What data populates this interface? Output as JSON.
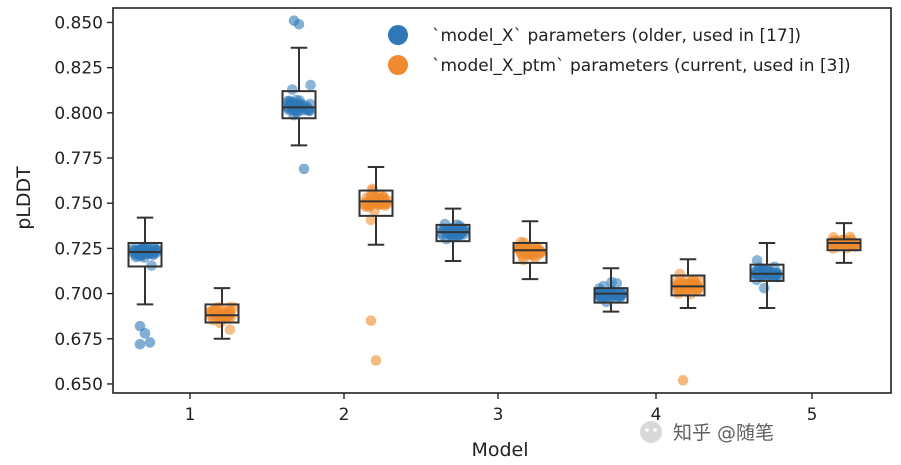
{
  "chart_data": {
    "type": "box_strip",
    "title": "",
    "xlabel": "Model",
    "ylabel": "pLDDT",
    "categories": [
      "1",
      "2",
      "3",
      "4",
      "5"
    ],
    "ylim": [
      0.645,
      0.858
    ],
    "yticks": [
      0.65,
      0.675,
      0.7,
      0.725,
      0.75,
      0.775,
      0.8,
      0.825,
      0.85
    ],
    "ytick_labels": [
      "0.650",
      "0.675",
      "0.700",
      "0.725",
      "0.750",
      "0.775",
      "0.800",
      "0.825",
      "0.850"
    ],
    "legend_position": "top-right",
    "series": [
      {
        "name": "`model_X` parameters (older, used in [17])",
        "color": "#2e78b8",
        "boxes": [
          {
            "min": 0.694,
            "q1": 0.715,
            "median": 0.723,
            "q3": 0.728,
            "max": 0.742
          },
          {
            "min": 0.782,
            "q1": 0.797,
            "median": 0.803,
            "q3": 0.812,
            "max": 0.836
          },
          {
            "min": 0.718,
            "q1": 0.729,
            "median": 0.734,
            "q3": 0.738,
            "max": 0.747
          },
          {
            "min": 0.69,
            "q1": 0.695,
            "median": 0.7,
            "q3": 0.703,
            "max": 0.714
          },
          {
            "min": 0.692,
            "q1": 0.707,
            "median": 0.711,
            "q3": 0.716,
            "max": 0.728
          }
        ],
        "outliers": [
          {
            "category": "1",
            "values": [
              0.682,
              0.678,
              0.673,
              0.672
            ]
          },
          {
            "category": "2",
            "values": [
              0.851,
              0.849,
              0.769
            ]
          }
        ]
      },
      {
        "name": "`model_X_ptm` parameters (current, used in [3])",
        "color": "#ef8a2e",
        "boxes": [
          {
            "min": 0.675,
            "q1": 0.684,
            "median": 0.688,
            "q3": 0.694,
            "max": 0.703
          },
          {
            "min": 0.727,
            "q1": 0.743,
            "median": 0.751,
            "q3": 0.757,
            "max": 0.77
          },
          {
            "min": 0.708,
            "q1": 0.717,
            "median": 0.724,
            "q3": 0.728,
            "max": 0.74
          },
          {
            "min": 0.692,
            "q1": 0.699,
            "median": 0.704,
            "q3": 0.71,
            "max": 0.719
          },
          {
            "min": 0.717,
            "q1": 0.724,
            "median": 0.728,
            "q3": 0.73,
            "max": 0.739
          }
        ],
        "outliers": [
          {
            "category": "2",
            "values": [
              0.685,
              0.663
            ]
          },
          {
            "category": "4",
            "values": [
              0.652
            ]
          }
        ]
      }
    ]
  },
  "watermark": "知乎 @随笔"
}
